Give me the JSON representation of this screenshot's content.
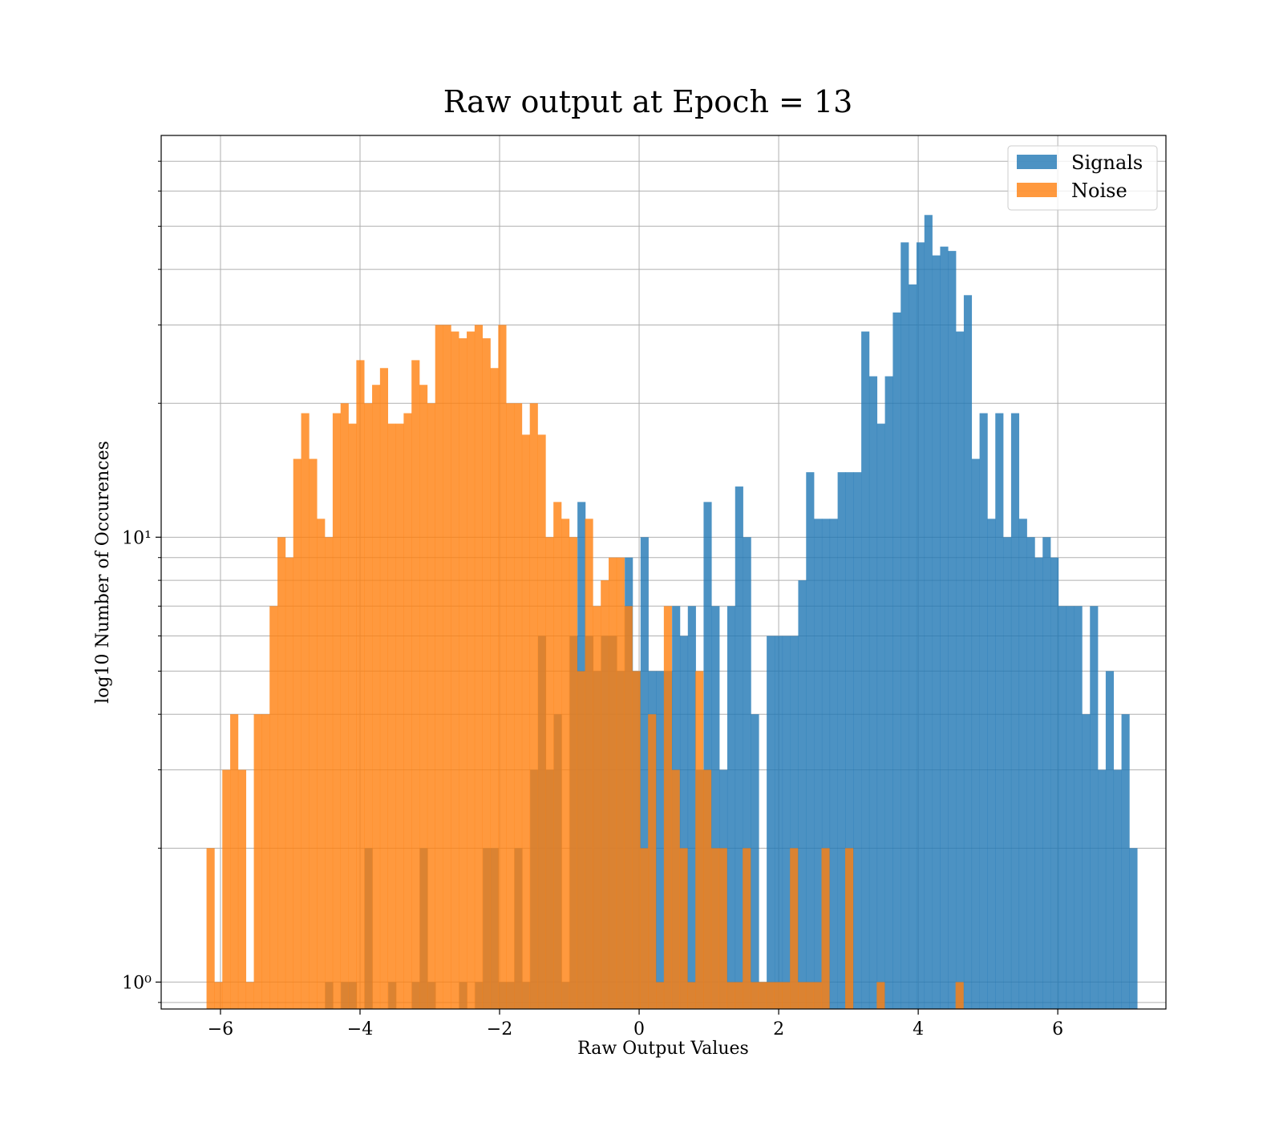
{
  "chart_data": {
    "type": "histogram",
    "title": "Raw output at Epoch = 13",
    "xlabel": "Raw Output Values",
    "ylabel": "log10 Number of Occurences",
    "xlim": [
      -6.85,
      7.55
    ],
    "ylim": [
      0.87,
      80
    ],
    "yscale": "log",
    "grid": true,
    "legend_position": "top-right",
    "x_ticks": [
      -6,
      -4,
      -2,
      0,
      2,
      4,
      6
    ],
    "x_tick_labels": [
      "−6",
      "−4",
      "−2",
      "0",
      "2",
      "4",
      "6"
    ],
    "y_ticks": [
      1,
      10
    ],
    "y_tick_labels": [
      "10⁰",
      "10¹"
    ],
    "bin_width": 0.113,
    "series": [
      {
        "name": "Signals",
        "color": "#1f77b4",
        "opacity": 0.8,
        "bin_start": -4.5,
        "counts": [
          1,
          0,
          1,
          1,
          0,
          2,
          0,
          0,
          1,
          0,
          0,
          1,
          2,
          1,
          0,
          0,
          0,
          1,
          0,
          1,
          2,
          2,
          1,
          1,
          2,
          1,
          3,
          6,
          3,
          4,
          1,
          6,
          12,
          6,
          5,
          6,
          6,
          5,
          9,
          5,
          10,
          5,
          5,
          5,
          7,
          6,
          7,
          3,
          12,
          7,
          3,
          7,
          13,
          10,
          4,
          1,
          6,
          6,
          6,
          6,
          8,
          14,
          11,
          11,
          11,
          14,
          14,
          14,
          29,
          23,
          18,
          23,
          32,
          46,
          37,
          46,
          53,
          43,
          45,
          44,
          29,
          35,
          15,
          19,
          11,
          19,
          10,
          19,
          11,
          10,
          9,
          10,
          9,
          7,
          7,
          7,
          4,
          7,
          3,
          5,
          3,
          4,
          2
        ]
      },
      {
        "name": "Noise",
        "color": "#ff7f0e",
        "opacity": 0.8,
        "bin_start": -6.2,
        "counts": [
          2,
          1,
          3,
          4,
          3,
          1,
          4,
          4,
          7,
          10,
          9,
          15,
          19,
          15,
          11,
          10,
          19,
          20,
          18,
          25,
          20,
          22,
          24,
          18,
          18,
          19,
          25,
          22,
          20,
          30,
          30,
          29,
          28,
          29,
          30,
          28,
          24,
          30,
          20,
          20,
          17,
          20,
          17,
          10,
          12,
          11,
          10,
          5,
          11,
          7,
          8,
          9,
          9,
          7,
          5,
          2,
          4,
          1,
          7,
          3,
          2,
          1,
          5,
          3,
          2,
          2,
          1,
          1,
          2,
          1,
          1,
          1,
          1,
          1,
          2,
          1,
          1,
          1,
          2,
          0,
          0,
          2,
          0,
          0,
          0,
          1,
          0,
          0,
          0,
          0,
          0,
          0,
          0,
          0,
          0,
          1
        ]
      }
    ]
  }
}
